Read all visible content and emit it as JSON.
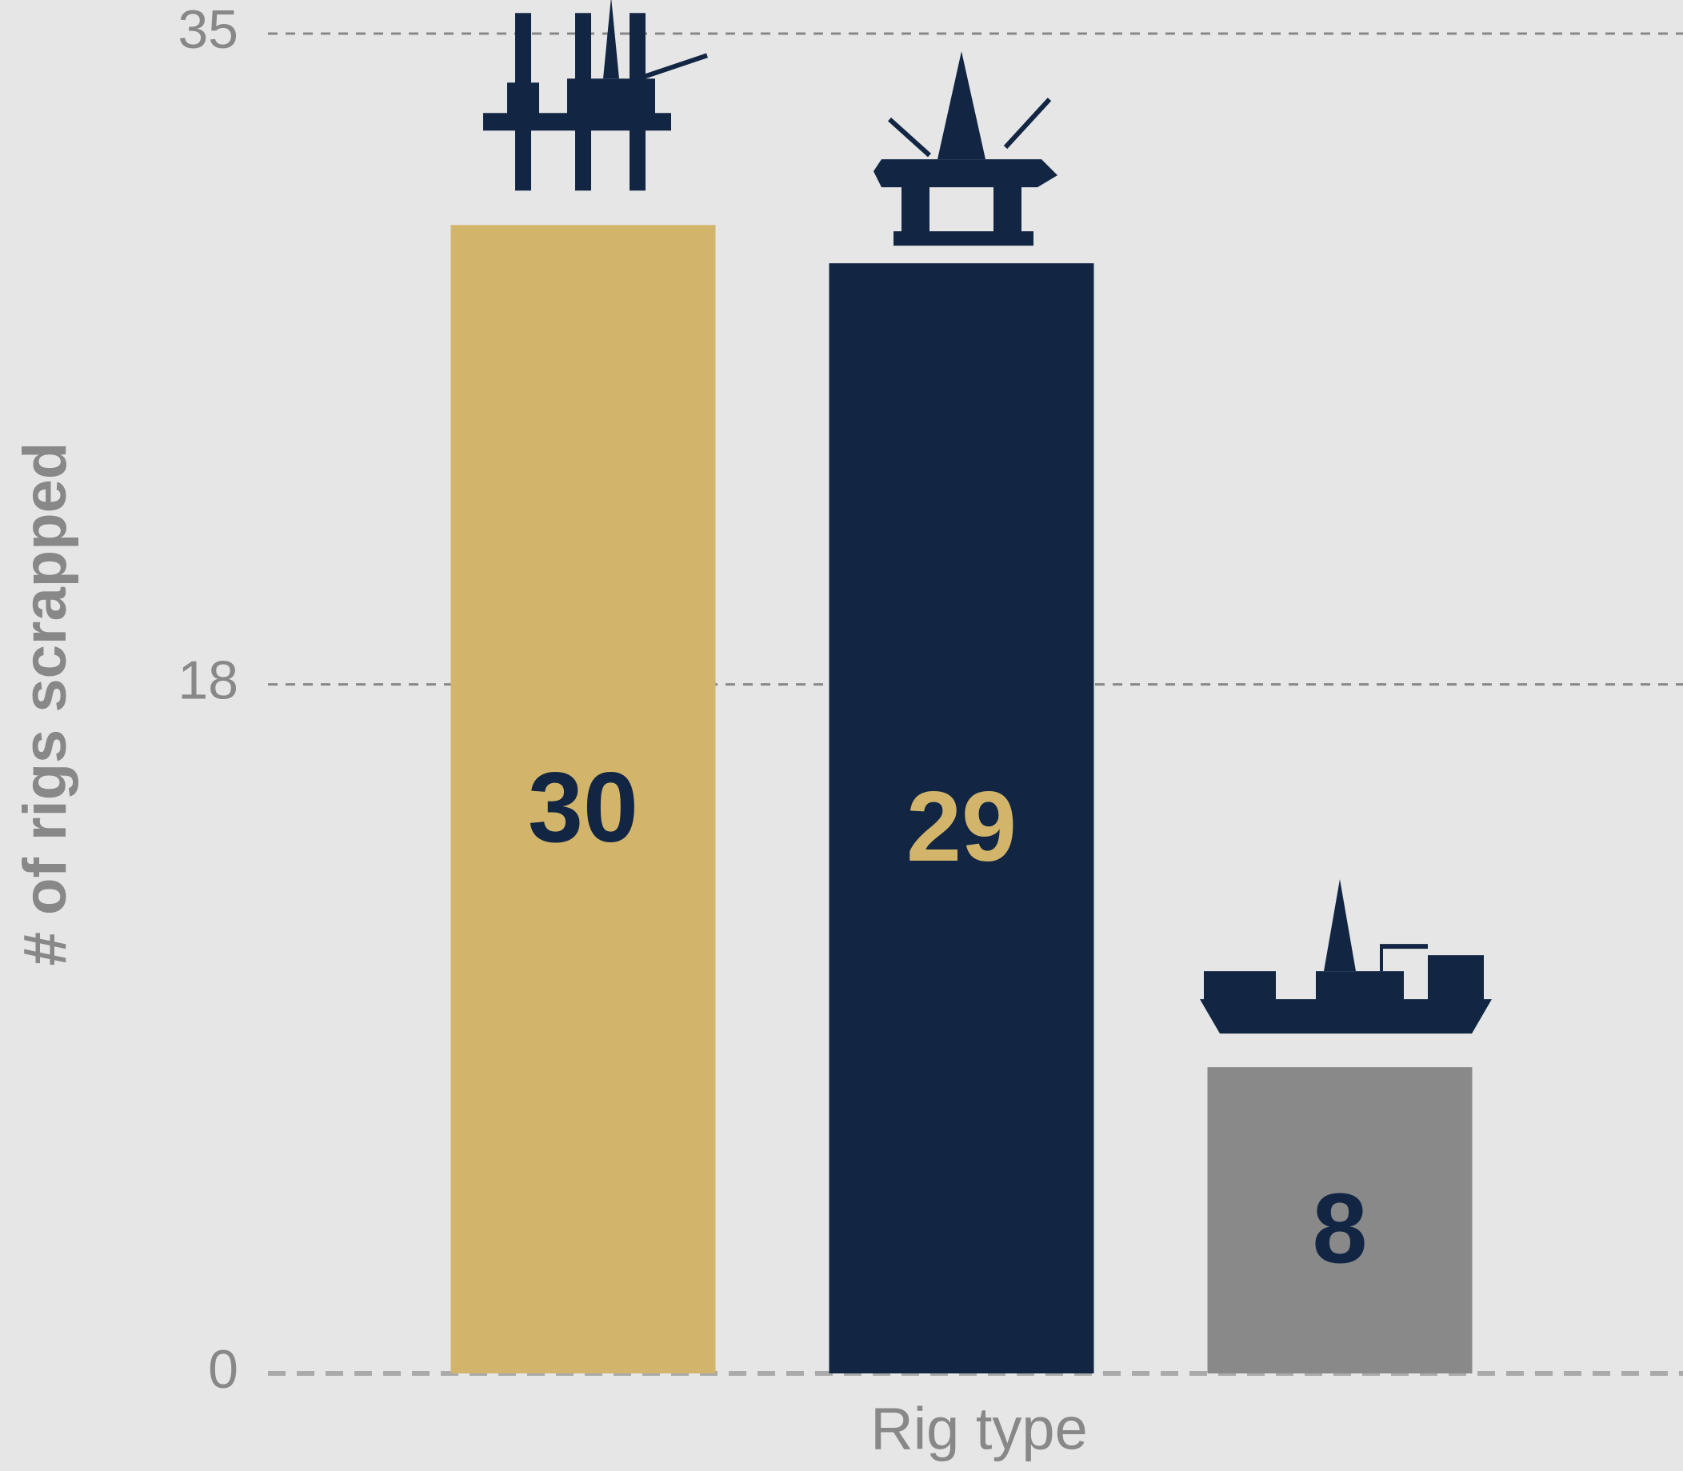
{
  "chart_data": {
    "type": "bar",
    "x_label": "Rig type",
    "y_label": "# of rigs scrapped",
    "categories": [
      null,
      null,
      null
    ],
    "values": [
      30,
      29,
      8
    ],
    "colors": [
      "#d2b56b",
      "#122644",
      "#898989"
    ],
    "label_colors": [
      "#122644",
      "#d2b56b",
      "#122644"
    ],
    "ylim": [
      0,
      35
    ],
    "yticks": [
      0,
      18,
      35
    ],
    "grid": true
  }
}
